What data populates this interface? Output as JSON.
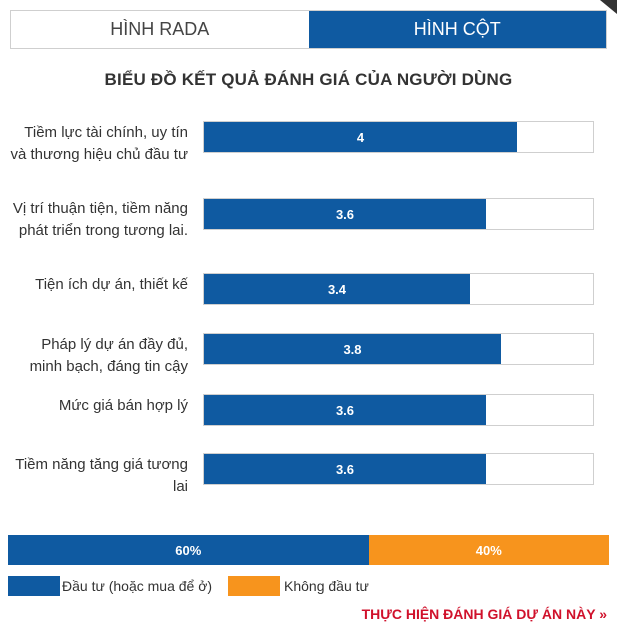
{
  "tabs": [
    {
      "label": "HÌNH RADA",
      "active": false
    },
    {
      "label": "HÌNH CỘT",
      "active": true
    }
  ],
  "chart_data": {
    "type": "bar",
    "orientation": "horizontal",
    "title": "BIỂU ĐỒ KẾT QUẢ ĐÁNH GIÁ CỦA NGƯỜI DÙNG",
    "categories": [
      "Tiềm lực tài chính, uy tín và thương hiệu chủ đầu tư",
      "Vị trí thuận tiện, tiềm năng phát triển trong tương lai.",
      "Tiện ích dự án, thiết kế",
      "Pháp lý dự án đầy đủ, minh bạch, đáng tin cậy",
      "Mức giá bán hợp lý",
      "Tiềm năng tăng giá tương lai"
    ],
    "values": [
      4,
      3.6,
      3.4,
      3.8,
      3.6,
      3.6
    ],
    "value_labels": [
      "4",
      "3.6",
      "3.4",
      "3.8",
      "3.6",
      "3.6"
    ],
    "xlim": [
      0,
      5
    ],
    "bar_color": "#0f5aa1"
  },
  "split": {
    "segments": [
      {
        "name": "Đầu tư (hoặc mua để ở)",
        "percent": 60,
        "label": "60%",
        "color": "#0f5aa1"
      },
      {
        "name": "Không đầu tư",
        "percent": 40,
        "label": "40%",
        "color": "#f7941d"
      }
    ]
  },
  "cta": {
    "label": "THỰC HIỆN ĐÁNH GIÁ DỰ ÁN NÀY »"
  },
  "colors": {
    "primary": "#0f5aa1",
    "accent": "#f7941d",
    "cta": "#d0112b"
  }
}
